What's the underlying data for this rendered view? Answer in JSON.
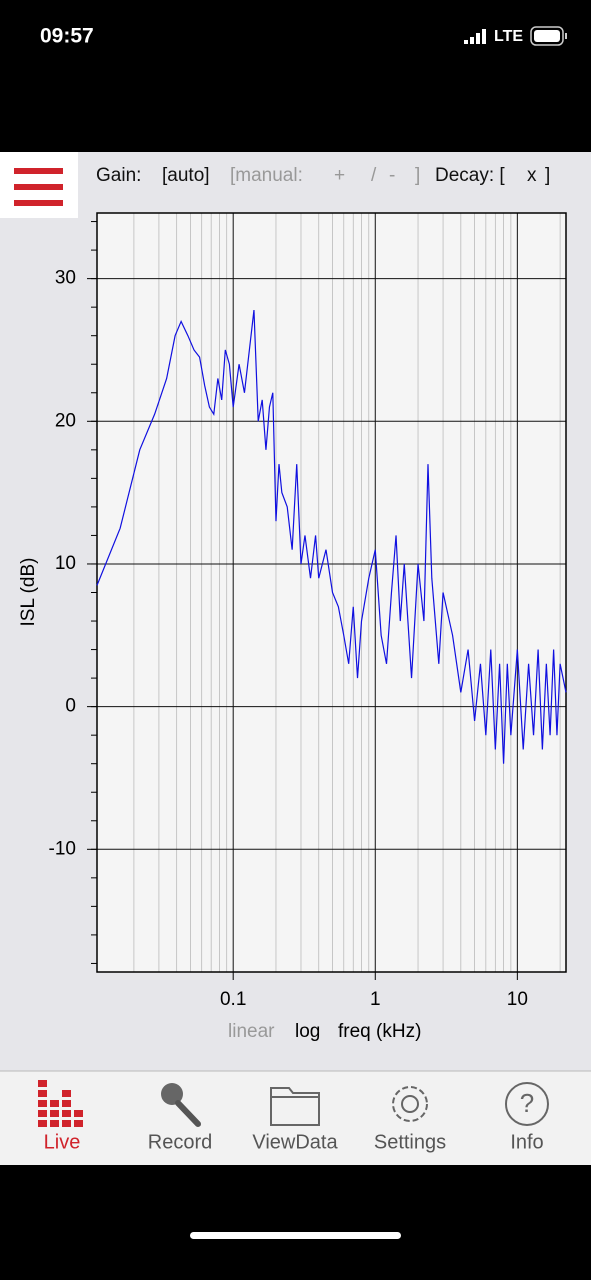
{
  "status": {
    "time": "09:57",
    "network": "LTE"
  },
  "toolbar": {
    "gain": "Gain:",
    "auto": "[auto]",
    "manual": "[manual:",
    "plus": "+",
    "slash": "/",
    "minus": "-",
    "close": "]",
    "decay": "Decay: [",
    "x": "x",
    "decay_close": "]"
  },
  "chart_data": {
    "type": "line",
    "ylabel": "ISL (dB)",
    "xmode_linear": "linear",
    "xmode_log": "log",
    "xlabel": "freq (kHz)",
    "log_x": true,
    "grid": true,
    "xlim": [
      0.011,
      22
    ],
    "ylim": [
      -18.6,
      34.6
    ],
    "xticks": [
      0.1,
      1,
      10
    ],
    "yticks": [
      30,
      20,
      10,
      0,
      -10
    ],
    "x": [
      0.011,
      0.016,
      0.022,
      0.028,
      0.034,
      0.039,
      0.043,
      0.048,
      0.053,
      0.058,
      0.063,
      0.068,
      0.073,
      0.078,
      0.083,
      0.088,
      0.094,
      0.1,
      0.11,
      0.12,
      0.13,
      0.14,
      0.15,
      0.16,
      0.17,
      0.18,
      0.19,
      0.2,
      0.21,
      0.22,
      0.24,
      0.26,
      0.28,
      0.3,
      0.32,
      0.35,
      0.38,
      0.4,
      0.45,
      0.5,
      0.55,
      0.6,
      0.65,
      0.7,
      0.75,
      0.8,
      0.9,
      1.0,
      1.1,
      1.2,
      1.3,
      1.4,
      1.5,
      1.6,
      1.8,
      2.0,
      2.2,
      2.35,
      2.5,
      2.8,
      3.0,
      3.5,
      4.0,
      4.5,
      5.0,
      5.5,
      6.0,
      6.5,
      7.0,
      7.5,
      8.0,
      8.5,
      9.0,
      10,
      11,
      12,
      13,
      14,
      15,
      16,
      17,
      18,
      19,
      20,
      22
    ],
    "series": [
      {
        "name": "ISL",
        "color": "#1010e0",
        "values": [
          8.5,
          12.5,
          18,
          20.5,
          23,
          26,
          27,
          26,
          25,
          24.5,
          22.5,
          21,
          20.5,
          23,
          21.5,
          25,
          24,
          21,
          24,
          22,
          25,
          27.8,
          20,
          21.5,
          18,
          21,
          22,
          13,
          17,
          15,
          14,
          11,
          17,
          10,
          12,
          9,
          12,
          9,
          11,
          8,
          7,
          5,
          3,
          7,
          2,
          6,
          9,
          11,
          5,
          3,
          8,
          12,
          6,
          10,
          2,
          10,
          6,
          17,
          9,
          3,
          8,
          5,
          1,
          4,
          -1,
          3,
          -2,
          4,
          -3,
          3,
          -4,
          3,
          -2,
          4,
          -3,
          3,
          -2,
          4,
          -3,
          3,
          -2,
          4,
          -2,
          3,
          1
        ]
      }
    ]
  },
  "tabs": [
    "Live",
    "Record",
    "ViewData",
    "Settings",
    "Info"
  ]
}
